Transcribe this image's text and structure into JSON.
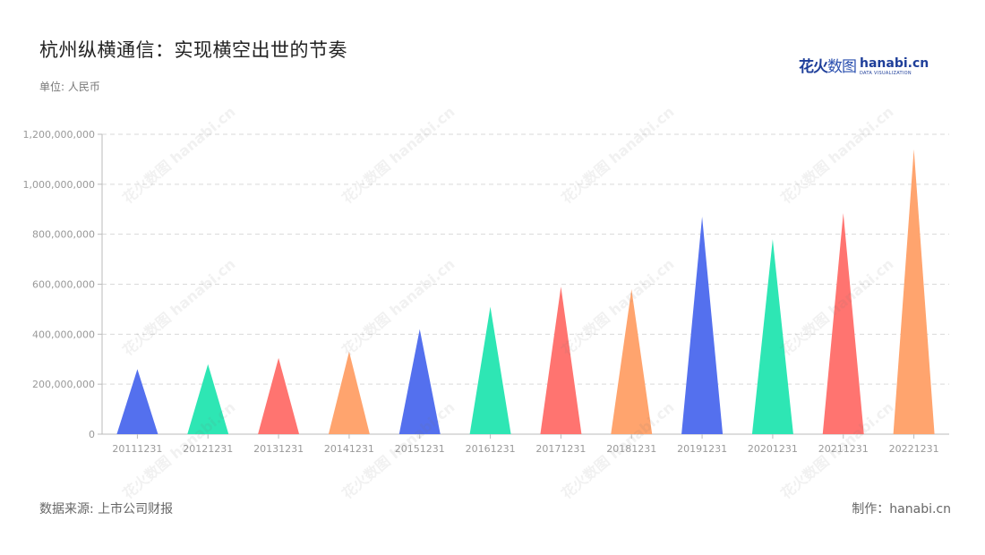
{
  "title": "杭州纵横通信：实现横空出世的节奏",
  "unit": "单位: 人民币",
  "logo": {
    "cn_bold": "花火",
    "cn_light": "数图",
    "en": "hanabi.cn",
    "sub": "DATA VISUALIZATION"
  },
  "footer": {
    "source": "数据来源: 上市公司财报",
    "made_by": "制作：hanabi.cn"
  },
  "watermark": "花火数图 hanabi.cn",
  "colors": {
    "blue": "#5470ee",
    "green": "#2ee6b4",
    "red": "#ff7470",
    "orange": "#ffa46e",
    "grid": "#d9d9d9",
    "axis_text": "#999999"
  },
  "chart_data": {
    "type": "bar",
    "style": "pictorial-triangle",
    "categories": [
      "20111231",
      "20121231",
      "20131231",
      "20141231",
      "20151231",
      "20161231",
      "20171231",
      "20181231",
      "20191231",
      "20201231",
      "20211231",
      "20221231"
    ],
    "values": [
      260000000,
      280000000,
      305000000,
      330000000,
      420000000,
      510000000,
      590000000,
      580000000,
      870000000,
      780000000,
      885000000,
      1140000000
    ],
    "bar_colors": [
      "#5470ee",
      "#2ee6b4",
      "#ff7470",
      "#ffa46e",
      "#5470ee",
      "#2ee6b4",
      "#ff7470",
      "#ffa46e",
      "#5470ee",
      "#2ee6b4",
      "#ff7470",
      "#ffa46e"
    ],
    "ylim": [
      0,
      1200000000
    ],
    "yticks": [
      0,
      200000000,
      400000000,
      600000000,
      800000000,
      1000000000,
      1200000000
    ],
    "ytick_labels": [
      "0",
      "200,000,000",
      "400,000,000",
      "600,000,000",
      "800,000,000",
      "1,000,000,000",
      "1,200,000,000"
    ],
    "grid": true,
    "legend": "none"
  }
}
